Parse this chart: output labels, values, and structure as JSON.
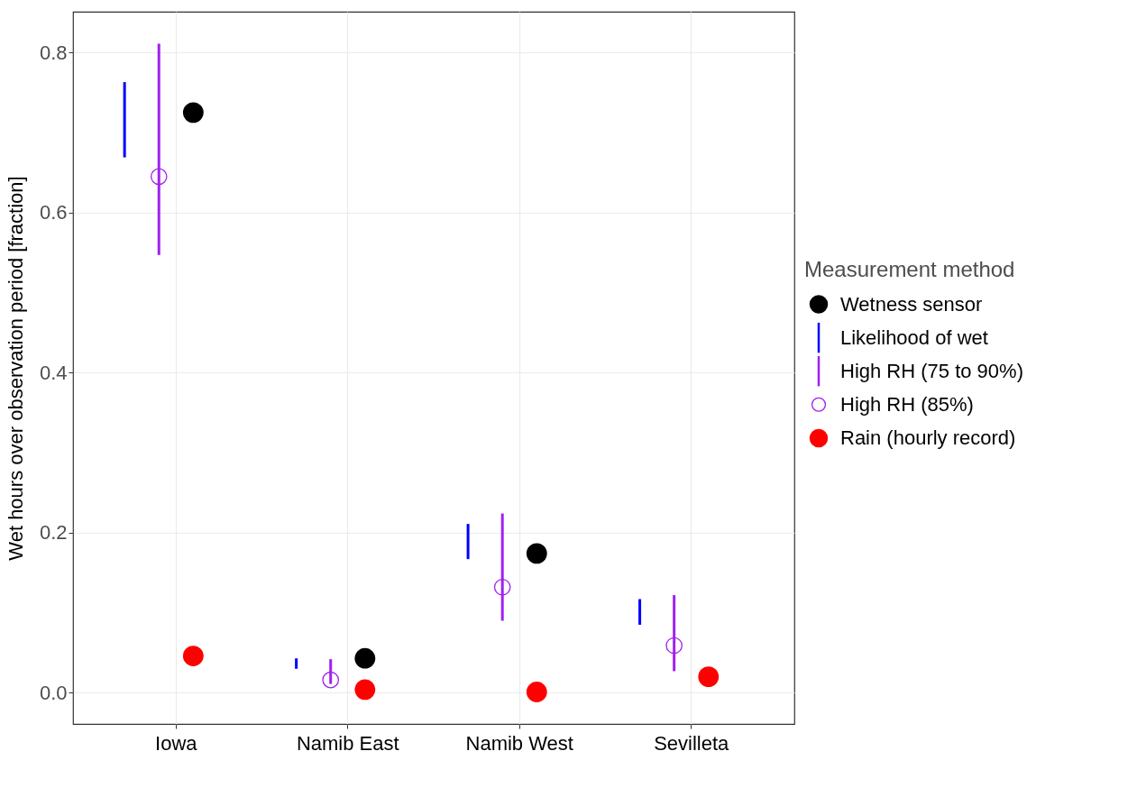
{
  "chart_data": {
    "type": "scatter",
    "ylabel": "Wet hours over observation period [fraction]",
    "legend_title": "Measurement method",
    "categories": [
      "Iowa",
      "Namib East",
      "Namib West",
      "Sevilleta"
    ],
    "ylim": [
      -0.039,
      0.851
    ],
    "yticks": [
      {
        "value": 0,
        "label": "0.0"
      },
      0.2,
      0.4,
      0.6,
      0.8
    ],
    "grid": true,
    "legend": "right",
    "marker": "circle",
    "series": [
      {
        "name": "Wetness sensor",
        "color": "#000000",
        "values": [
          0.725,
          0.043,
          0.174,
          null
        ]
      },
      {
        "name": "Likelihood of wet",
        "type": "bar",
        "color": "#0000ff",
        "base": [
          0.669,
          0.03,
          0.167,
          0.085
        ],
        "values": [
          0.094,
          0.013,
          0.044,
          0.032
        ]
      },
      {
        "name": "High RH (75 to 90%)",
        "type": "bar",
        "color": "#a020f0",
        "base": [
          0.547,
          0.011,
          0.09,
          0.027
        ],
        "values": [
          0.264,
          0.031,
          0.134,
          0.095
        ]
      },
      {
        "name": "High RH (85%)",
        "color": "#a020f0",
        "values": [
          0.645,
          0.016,
          0.132,
          0.059
        ]
      },
      {
        "name": "Rain (hourly record)",
        "color": "#ff0000",
        "values": [
          0.046,
          0.004,
          0.001,
          0.02
        ]
      }
    ]
  }
}
